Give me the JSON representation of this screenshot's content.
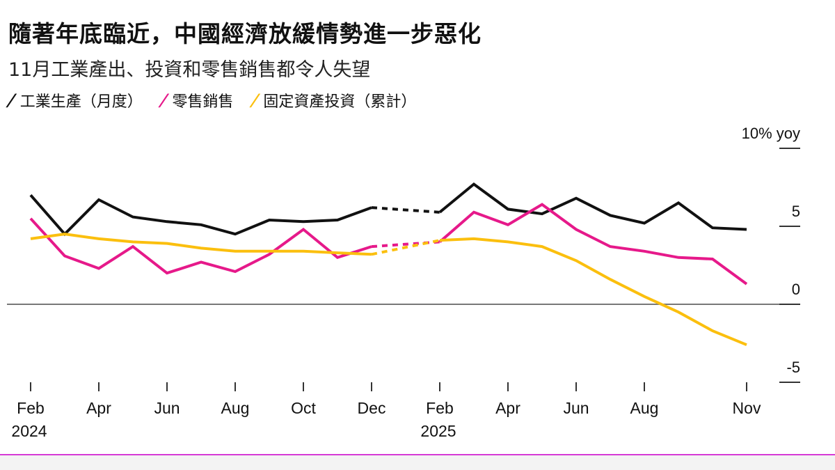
{
  "title": "隨著年底臨近，中國經濟放緩情勢進一步惡化",
  "subtitle": "11月工業產出、投資和零售銷售都令人失望",
  "legend": [
    {
      "label": "工業生產（月度）",
      "color": "#111111",
      "icon": "slash-line"
    },
    {
      "label": "零售銷售",
      "color": "#e6198a",
      "icon": "slash-line"
    },
    {
      "label": "固定資產投資（累計）",
      "color": "#fbbf0e",
      "icon": "slash-line"
    }
  ],
  "chart_data": {
    "type": "line",
    "ylabel": "10% yoy",
    "ylim": [
      -5,
      10
    ],
    "yticks": [
      10,
      5,
      0,
      -5
    ],
    "ytick_labels": [
      "10% yoy",
      "5",
      "0",
      "-5"
    ],
    "x": [
      "2024-02",
      "2024-03",
      "2024-04",
      "2024-05",
      "2024-06",
      "2024-07",
      "2024-08",
      "2024-09",
      "2024-10",
      "2024-11",
      "2024-12",
      "2025-02",
      "2025-03",
      "2025-04",
      "2025-05",
      "2025-06",
      "2025-07",
      "2025-08",
      "2025-09",
      "2025-10",
      "2025-11"
    ],
    "xticks": [
      {
        "x": "2024-02",
        "label": "Feb",
        "year": "2024"
      },
      {
        "x": "2024-04",
        "label": "Apr",
        "year": ""
      },
      {
        "x": "2024-06",
        "label": "Jun",
        "year": ""
      },
      {
        "x": "2024-08",
        "label": "Aug",
        "year": ""
      },
      {
        "x": "2024-10",
        "label": "Oct",
        "year": ""
      },
      {
        "x": "2024-12",
        "label": "Dec",
        "year": ""
      },
      {
        "x": "2025-02",
        "label": "Feb",
        "year": "2025"
      },
      {
        "x": "2025-04",
        "label": "Apr",
        "year": ""
      },
      {
        "x": "2025-06",
        "label": "Jun",
        "year": ""
      },
      {
        "x": "2025-08",
        "label": "Aug",
        "year": ""
      },
      {
        "x": "2025-11",
        "label": "Nov",
        "year": ""
      }
    ],
    "gap": {
      "from": "2024-12",
      "to": "2025-02",
      "style": "dashed"
    },
    "series": [
      {
        "name": "工業生產（月度）",
        "color": "#111111",
        "values": [
          7.0,
          4.5,
          6.7,
          5.6,
          5.3,
          5.1,
          4.5,
          5.4,
          5.3,
          5.4,
          6.2,
          5.9,
          7.7,
          6.1,
          5.8,
          6.8,
          5.7,
          5.2,
          6.5,
          4.9,
          4.8
        ]
      },
      {
        "name": "零售銷售",
        "color": "#e6198a",
        "values": [
          5.5,
          3.1,
          2.3,
          3.7,
          2.0,
          2.7,
          2.1,
          3.2,
          4.8,
          3.0,
          3.7,
          4.0,
          5.9,
          5.1,
          6.4,
          4.8,
          3.7,
          3.4,
          3.0,
          2.9,
          1.3
        ]
      },
      {
        "name": "固定資產投資（累計）",
        "color": "#fbbf0e",
        "values": [
          4.2,
          4.5,
          4.2,
          4.0,
          3.9,
          3.6,
          3.4,
          3.4,
          3.4,
          3.3,
          3.2,
          4.1,
          4.2,
          4.0,
          3.7,
          2.8,
          1.6,
          0.5,
          -0.5,
          -1.7,
          -2.6
        ]
      }
    ]
  }
}
